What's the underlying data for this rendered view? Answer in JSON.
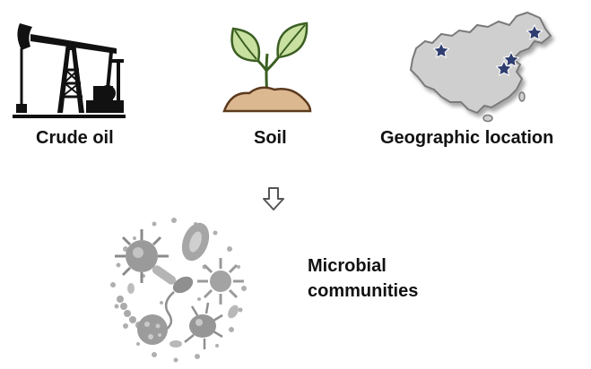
{
  "labels": {
    "crude_oil": "Crude oil",
    "soil": "Soil",
    "geographic_location": "Geographic location",
    "microbial_line1": "Microbial",
    "microbial_line2": "communities"
  },
  "icons": {
    "oil": "oil-pumpjack-icon",
    "soil": "seedling-icon",
    "map": "china-map-icon",
    "arrow": "arrow-down-icon",
    "microbes": "microbes-icon"
  },
  "colors": {
    "leaf_fill": "#c8e0a0",
    "leaf_stroke": "#3b5e22",
    "soil_fill": "#dcb890",
    "soil_stroke": "#5c3a1e",
    "map_fill": "#cfcfcf",
    "map_stroke": "#7a7a7a",
    "star_fill": "#2f3e70",
    "microbe_gray": "#9a9a9a"
  }
}
